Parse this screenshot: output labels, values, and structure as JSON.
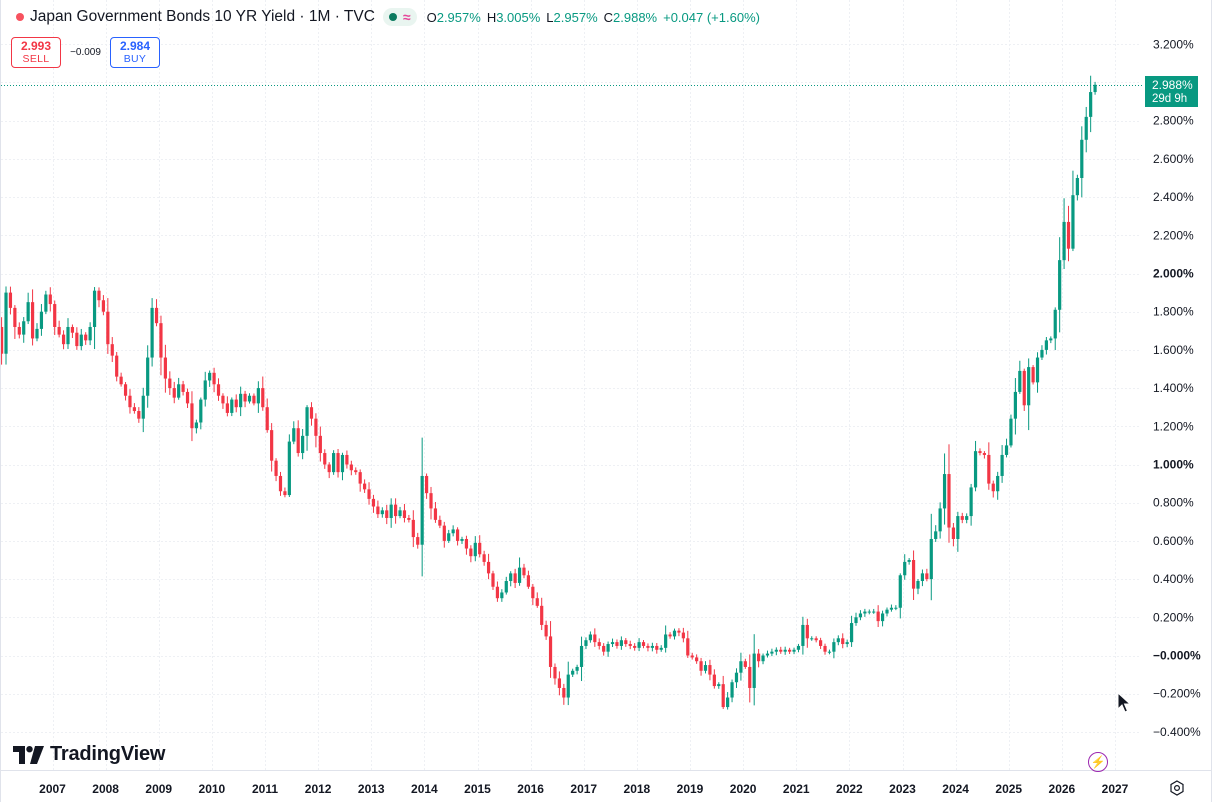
{
  "header": {
    "title": "Japan Government Bonds 10 YR Yield · 1M · TVC",
    "ohlc": [
      {
        "label": "O",
        "value": "2.957%"
      },
      {
        "label": "H",
        "value": "3.005%"
      },
      {
        "label": "L",
        "value": "2.957%"
      },
      {
        "label": "C",
        "value": "2.988%"
      },
      {
        "label": "",
        "value": "+0.047 (+1.60%)"
      }
    ]
  },
  "trade": {
    "sell_price": "2.993",
    "sell_label": "SELL",
    "spread": "−0.009",
    "buy_price": "2.984",
    "buy_label": "BUY"
  },
  "last_price": {
    "value": "2.988%",
    "countdown": "29d 9h"
  },
  "logo": {
    "text": "TradingView"
  },
  "colors": {
    "up": "#089981",
    "down": "#f23645",
    "grid": "#e0e3eb",
    "text": "#131722",
    "accent": "#2962ff"
  },
  "icons": [
    "status-dot-icon",
    "data-dot-icon",
    "wave-icon",
    "tradingview-logo-icon",
    "lightning-icon",
    "gear-icon",
    "cursor-icon"
  ],
  "chart_data": {
    "type": "candlestick",
    "title": "Japan Government Bonds 10 YR Yield · 1M · TVC",
    "interval": "1M",
    "y_axis": {
      "position": "right",
      "range": [
        -0.44,
        3.26
      ],
      "ticks": [
        "3.200%",
        "2.800%",
        "2.600%",
        "2.400%",
        "2.200%",
        "2.000%",
        "1.800%",
        "1.600%",
        "1.400%",
        "1.200%",
        "1.000%",
        "0.800%",
        "0.600%",
        "0.400%",
        "0.200%",
        "−0.000%",
        "−0.200%",
        "−0.400%"
      ],
      "bold_ticks": [
        "2.000%",
        "1.000%",
        "−0.000%"
      ]
    },
    "x_axis": {
      "ticks": [
        "2007",
        "2008",
        "2009",
        "2010",
        "2011",
        "2012",
        "2013",
        "2014",
        "2015",
        "2016",
        "2017",
        "2018",
        "2019",
        "2020",
        "2021",
        "2022",
        "2023",
        "2024",
        "2025",
        "2026",
        "2027"
      ],
      "range_years": [
        2006.0,
        2027.4
      ]
    },
    "grid": true,
    "last_close": 2.988,
    "series": [
      {
        "year": 2006,
        "values": [
          1.58,
          1.9,
          1.82,
          1.72,
          1.68,
          1.75,
          1.85,
          1.66,
          1.71,
          1.8,
          1.89,
          1.84
        ]
      },
      {
        "year": 2007,
        "values": [
          1.72,
          1.68,
          1.63,
          1.72,
          1.69,
          1.62,
          1.68,
          1.65,
          1.72,
          1.91,
          1.86,
          1.8
        ]
      },
      {
        "year": 2008,
        "values": [
          1.63,
          1.57,
          1.46,
          1.42,
          1.36,
          1.3,
          1.28,
          1.24,
          1.36,
          1.56,
          1.82,
          1.74
        ]
      },
      {
        "year": 2009,
        "values": [
          1.56,
          1.45,
          1.4,
          1.35,
          1.42,
          1.38,
          1.32,
          1.19,
          1.22,
          1.34,
          1.44,
          1.48
        ]
      },
      {
        "year": 2010,
        "values": [
          1.42,
          1.36,
          1.32,
          1.27,
          1.34,
          1.3,
          1.37,
          1.33,
          1.36,
          1.32,
          1.4,
          1.3
        ]
      },
      {
        "year": 2011,
        "values": [
          1.18,
          1.02,
          0.94,
          0.86,
          0.84,
          1.12,
          1.19,
          1.06,
          1.15,
          1.3,
          1.24,
          1.15
        ]
      },
      {
        "year": 2012,
        "values": [
          1.06,
          1.0,
          0.96,
          1.06,
          0.96,
          1.05,
          1.0,
          0.97,
          0.96,
          0.9,
          0.87,
          0.82
        ]
      },
      {
        "year": 2013,
        "values": [
          0.78,
          0.74,
          0.76,
          0.72,
          0.79,
          0.73,
          0.76,
          0.72,
          0.71,
          0.62,
          0.58,
          0.94
        ]
      },
      {
        "year": 2014,
        "values": [
          0.85,
          0.77,
          0.71,
          0.68,
          0.6,
          0.64,
          0.66,
          0.6,
          0.61,
          0.56,
          0.52,
          0.59
        ]
      },
      {
        "year": 2015,
        "values": [
          0.53,
          0.49,
          0.43,
          0.36,
          0.3,
          0.33,
          0.39,
          0.43,
          0.38,
          0.46,
          0.42,
          0.36
        ]
      },
      {
        "year": 2016,
        "values": [
          0.3,
          0.26,
          0.16,
          0.1,
          -0.06,
          -0.12,
          -0.17,
          -0.22,
          -0.1,
          -0.08,
          -0.06,
          0.05
        ]
      },
      {
        "year": 2017,
        "values": [
          0.08,
          0.11,
          0.07,
          0.05,
          0.02,
          0.06,
          0.07,
          0.05,
          0.08,
          0.06,
          0.05,
          0.04
        ]
      },
      {
        "year": 2018,
        "values": [
          0.07,
          0.05,
          0.04,
          0.05,
          0.03,
          0.04,
          0.11,
          0.1,
          0.13,
          0.12,
          0.09,
          0.0
        ]
      },
      {
        "year": 2019,
        "values": [
          -0.01,
          -0.03,
          -0.08,
          -0.05,
          -0.1,
          -0.16,
          -0.15,
          -0.27,
          -0.22,
          -0.14,
          -0.09,
          -0.03
        ]
      },
      {
        "year": 2020,
        "values": [
          -0.06,
          -0.17,
          0.01,
          -0.03,
          0.0,
          0.01,
          0.02,
          0.03,
          0.02,
          0.03,
          0.02,
          0.03
        ]
      },
      {
        "year": 2021,
        "values": [
          0.05,
          0.16,
          0.09,
          0.09,
          0.08,
          0.05,
          0.02,
          0.02,
          0.07,
          0.09,
          0.06,
          0.07
        ]
      },
      {
        "year": 2022,
        "values": [
          0.17,
          0.2,
          0.22,
          0.23,
          0.23,
          0.23,
          0.18,
          0.22,
          0.24,
          0.25,
          0.25,
          0.42
        ]
      },
      {
        "year": 2023,
        "values": [
          0.49,
          0.5,
          0.35,
          0.39,
          0.43,
          0.4,
          0.61,
          0.65,
          0.77,
          0.95,
          0.67,
          0.61
        ]
      },
      {
        "year": 2024,
        "values": [
          0.73,
          0.71,
          0.73,
          0.88,
          1.07,
          1.06,
          1.05,
          0.9,
          0.86,
          0.94,
          1.05,
          1.1
        ]
      },
      {
        "year": 2025,
        "values": [
          1.24,
          1.38,
          1.49,
          1.31,
          1.51,
          1.43,
          1.56,
          1.6,
          1.65,
          1.66,
          1.81,
          2.07
        ]
      },
      {
        "year": 2026,
        "values": [
          2.27,
          2.13,
          2.41,
          2.5,
          2.7,
          2.82,
          2.95,
          2.988
        ]
      }
    ]
  }
}
